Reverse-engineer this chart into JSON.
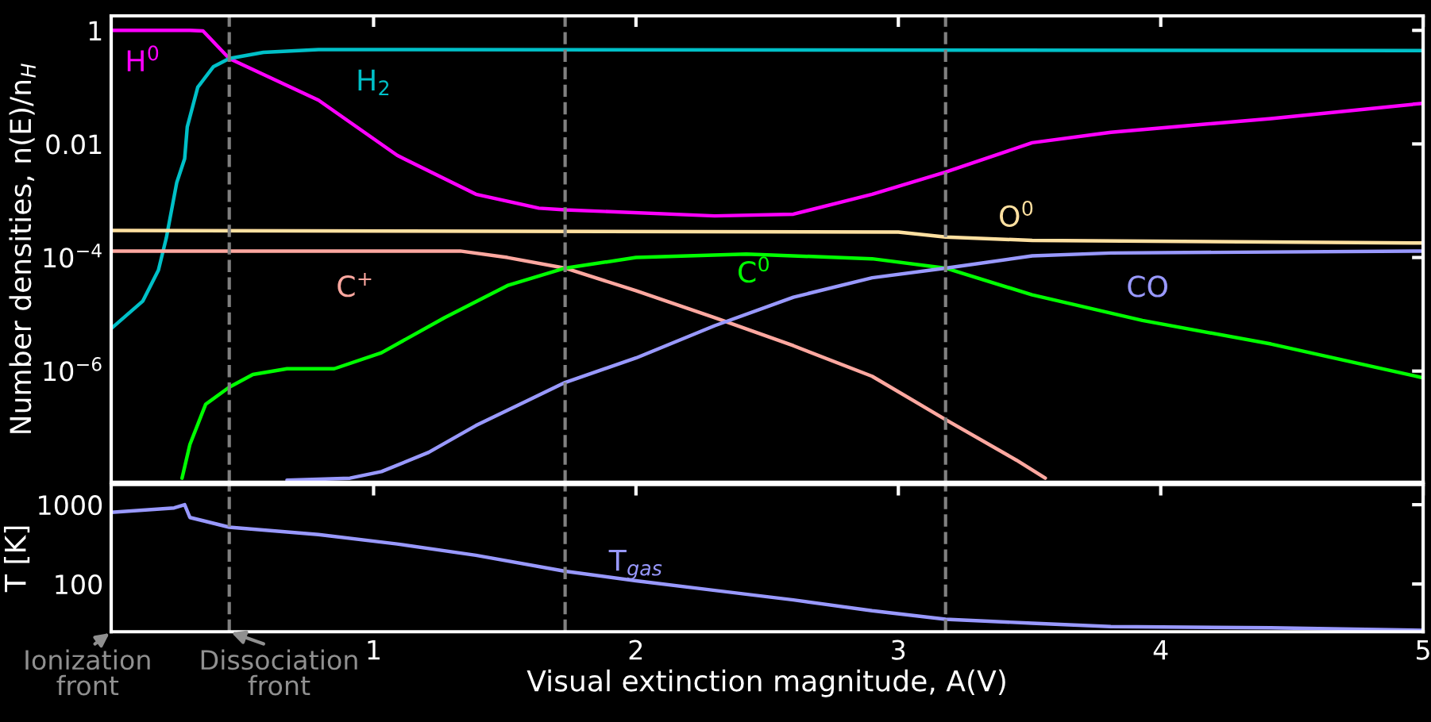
{
  "chart_data": [
    {
      "type": "line",
      "ylabel": "Number densities, n(E)/n$_{H}$",
      "xlim": [
        0,
        5
      ],
      "xticks": [
        1,
        2,
        3,
        4,
        5
      ],
      "ylim": [
        1.1e-08,
        1.8
      ],
      "log": "y",
      "yticks": [
        {
          "value": 1,
          "label": "1"
        },
        {
          "value": 0.01,
          "label": "0.01"
        },
        {
          "value": 0.0001,
          "label": "10$^{−4}$"
        },
        {
          "value": 1e-06,
          "label": "10$^{−6}$"
        }
      ],
      "tick_labels": "y",
      "grid": false,
      "legend": false,
      "line_style": "solid",
      "marker": "none",
      "series": [
        {
          "name": "H$^{0}$",
          "color": "#ff00ff",
          "x": [
            0,
            0.3,
            0.35,
            0.45,
            0.79,
            1.09,
            1.39,
            1.63,
            1.73,
            2.3,
            2.6,
            2.9,
            3.18,
            3.51,
            3.81,
            4.42,
            5
          ],
          "values": [
            1,
            1,
            0.98,
            0.32,
            0.059,
            0.0063,
            0.0013,
            0.00074,
            0.00069,
            0.00054,
            0.00058,
            0.0013,
            0.0032,
            0.0105,
            0.016,
            0.028,
            0.052
          ]
        },
        {
          "name": "H$_{2}$",
          "color": "#00c0c8",
          "x": [
            0,
            0.12,
            0.18,
            0.21,
            0.25,
            0.28,
            0.29,
            0.33,
            0.39,
            0.45,
            0.58,
            0.79,
            5
          ],
          "values": [
            5.6e-06,
            1.7e-05,
            6e-05,
            0.00022,
            0.0021,
            0.0055,
            0.02,
            0.1,
            0.23,
            0.32,
            0.41,
            0.46,
            0.44
          ]
        },
        {
          "name": "O$^{0}$",
          "color": "#ffe0a0",
          "x": [
            0,
            3.0,
            3.18,
            3.51,
            5
          ],
          "values": [
            0.0003,
            0.00028,
            0.00023,
            0.0002,
            0.00018
          ]
        },
        {
          "name": "C$^{+}$",
          "color": "#ffa8a0",
          "x": [
            0,
            1.33,
            1.51,
            1.73,
            2.0,
            2.3,
            2.6,
            2.9,
            3.18,
            3.45,
            3.56
          ],
          "values": [
            0.00013,
            0.00013,
            0.0001,
            6.5e-05,
            2.6e-05,
            8.7e-06,
            2.8e-06,
            8.1e-07,
            1.4e-07,
            2.7e-08,
            1.3e-08
          ]
        },
        {
          "name": "C$^{0}$",
          "color": "#00ff00",
          "x": [
            0.27,
            0.3,
            0.36,
            0.45,
            0.54,
            0.67,
            0.85,
            1.03,
            1.27,
            1.51,
            1.73,
            2.0,
            2.42,
            2.9,
            3.18,
            3.51,
            3.93,
            4.42,
            5
          ],
          "values": [
            1.3e-08,
            5.1e-08,
            2.6e-07,
            5.2e-07,
            8.7e-07,
            1.1e-06,
            1.1e-06,
            2.1e-06,
            8.7e-06,
            3.2e-05,
            6.5e-05,
            0.0001,
            0.000115,
            9.5e-05,
            6.5e-05,
            2.2e-05,
            7.8e-06,
            3e-06,
            7.6e-07
          ]
        },
        {
          "name": "CO",
          "color": "#9999ff",
          "x": [
            0.67,
            0.91,
            1.03,
            1.21,
            1.39,
            1.73,
            2.0,
            2.3,
            2.6,
            2.9,
            3.18,
            3.51,
            3.81,
            5
          ],
          "values": [
            1.2e-08,
            1.3e-08,
            1.7e-08,
            3.7e-08,
            1.1e-07,
            6.3e-07,
            1.7e-06,
            6.3e-06,
            2e-05,
            4.4e-05,
            6.5e-05,
            0.000107,
            0.00012,
            0.00013
          ]
        }
      ],
      "ref_lines": [
        {
          "axis": "x",
          "value": 0.45,
          "color": "#808080",
          "line_style": "dashed"
        },
        {
          "axis": "x",
          "value": 1.73,
          "color": "#808080",
          "line_style": "dashed"
        },
        {
          "axis": "x",
          "value": 3.18,
          "color": "#808080",
          "line_style": "dashed"
        }
      ]
    },
    {
      "type": "line",
      "ylabel": "T [K]",
      "xlabel": "Visual extinction magnitude, A(V)",
      "xlim": [
        0,
        5
      ],
      "xticks": [
        1,
        2,
        3,
        4,
        5
      ],
      "ylim": [
        25,
        1800
      ],
      "log": "y",
      "yticks": [
        100,
        1000
      ],
      "grid": false,
      "legend": false,
      "line_style": "solid",
      "marker": "none",
      "series": [
        {
          "name": "T$_{gas}$",
          "color": "#9999ff",
          "x": [
            0,
            0.24,
            0.28,
            0.3,
            0.45,
            0.79,
            1.09,
            1.39,
            1.73,
            2.0,
            2.3,
            2.6,
            2.9,
            3.18,
            3.51,
            3.81,
            4.42,
            5
          ],
          "values": [
            800,
            910,
            1000,
            690,
            520,
            420,
            320,
            230,
            145,
            110,
            83,
            63,
            46,
            36,
            32,
            29,
            28,
            26
          ]
        }
      ],
      "ref_lines": [
        {
          "axis": "x",
          "value": 0.45,
          "color": "#808080",
          "line_style": "dashed"
        },
        {
          "axis": "x",
          "value": 1.73,
          "color": "#808080",
          "line_style": "dashed"
        },
        {
          "axis": "x",
          "value": 3.18,
          "color": "#808080",
          "line_style": "dashed"
        }
      ],
      "annotations": [
        "Ionization\nfront",
        {
          "text": "Dissociation\nfront",
          "x": 0.45,
          "y": 25
        }
      ]
    }
  ]
}
